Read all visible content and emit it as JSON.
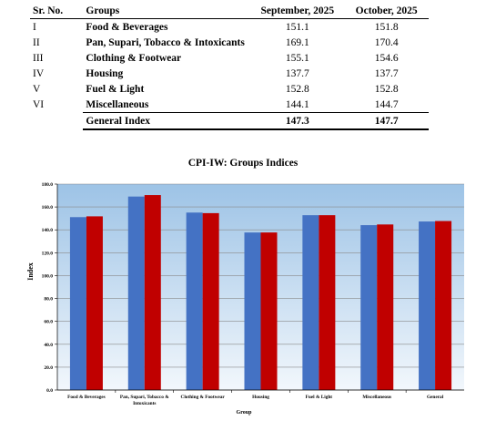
{
  "table": {
    "headers": [
      "Sr. No.",
      "Groups",
      "September, 2025",
      "October, 2025"
    ],
    "rows": [
      {
        "sr": "I",
        "group": "Food & Beverages",
        "sep": "151.1",
        "oct": "151.8"
      },
      {
        "sr": "II",
        "group": "Pan, Supari, Tobacco & Intoxicants",
        "sep": "169.1",
        "oct": "170.4"
      },
      {
        "sr": "III",
        "group": "Clothing & Footwear",
        "sep": "155.1",
        "oct": "154.6"
      },
      {
        "sr": "IV",
        "group": "Housing",
        "sep": "137.7",
        "oct": "137.7"
      },
      {
        "sr": "V",
        "group": "Fuel & Light",
        "sep": "152.8",
        "oct": "152.8"
      },
      {
        "sr": "VI",
        "group": "Miscellaneous",
        "sep": "144.1",
        "oct": "144.7"
      }
    ],
    "total": {
      "sr": "",
      "group": "General Index",
      "sep": "147.3",
      "oct": "147.7"
    }
  },
  "chart_data": {
    "type": "bar",
    "title": "CPI-IW: Groups Indices",
    "xlabel": "Group",
    "ylabel": "Index",
    "categories": [
      [
        "Food & Beverages"
      ],
      [
        "Pan, Supari, Tobacco &",
        "Intoxicants"
      ],
      [
        "Clothing & Footwear"
      ],
      [
        "Housing"
      ],
      [
        "Fuel & Light"
      ],
      [
        "Miscellaneous"
      ],
      [
        "General"
      ]
    ],
    "series": [
      {
        "values": [
          151.1,
          169.1,
          155.1,
          137.7,
          152.8,
          144.1,
          147.3
        ],
        "color": "#4472C4"
      },
      {
        "values": [
          151.8,
          170.4,
          154.6,
          137.7,
          152.8,
          144.7,
          147.7
        ],
        "color": "#C00000"
      }
    ],
    "ylim": [
      0,
      180
    ],
    "yticks": [
      "0.0",
      "20.0",
      "40.0",
      "60.0",
      "80.0",
      "100.0",
      "120.0",
      "140.0",
      "160.0",
      "180.0"
    ],
    "grid": true,
    "plot_background": [
      "#9DC3E6",
      "#F2F7FC"
    ],
    "legend": "none"
  }
}
